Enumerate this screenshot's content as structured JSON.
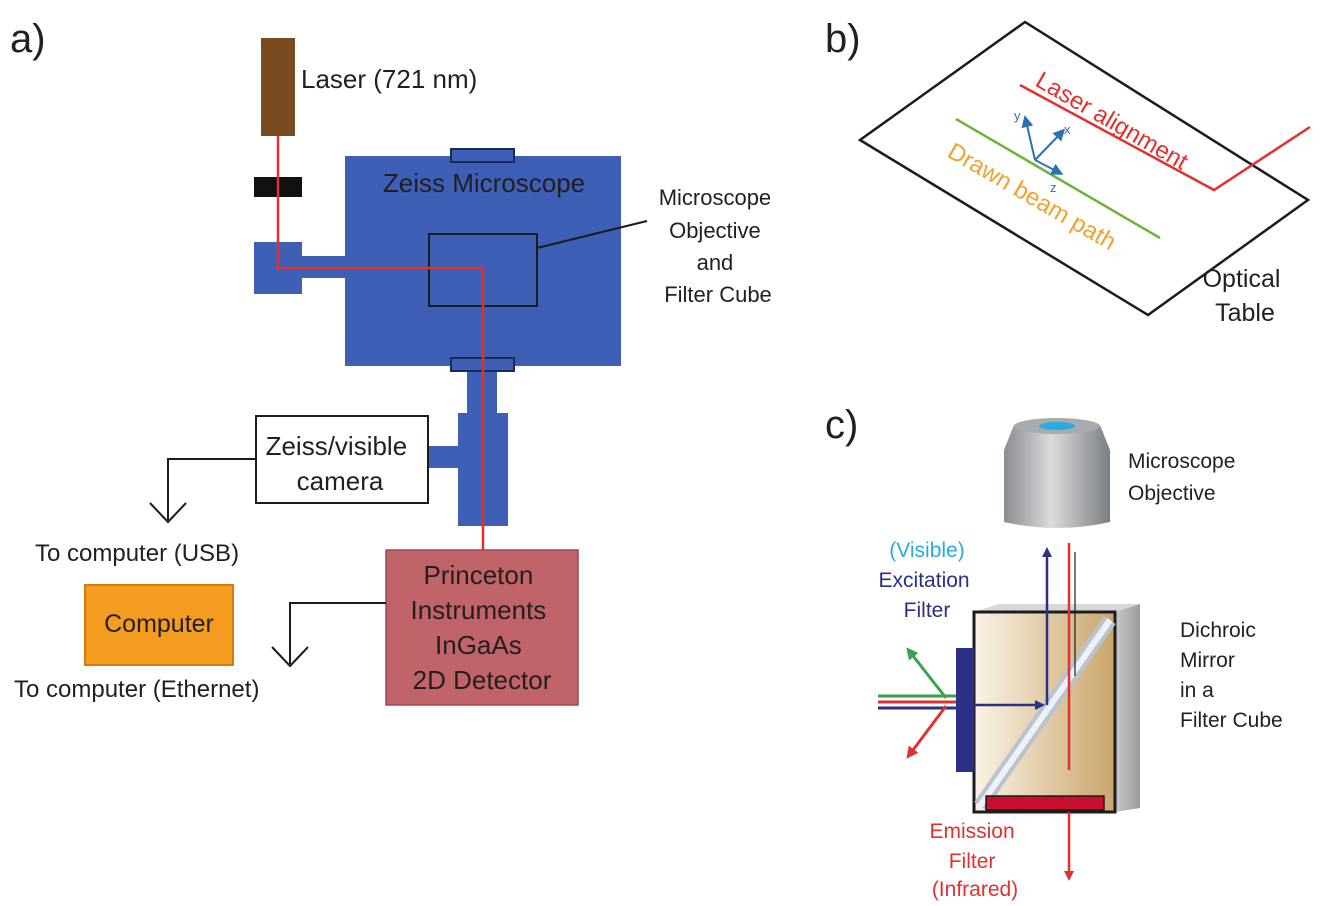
{
  "panel_a": {
    "label": "a)",
    "laser": "Laser (721 nm)",
    "microscope": "Zeiss Microscope",
    "objective_label": [
      "Microscope",
      "Objective",
      "and",
      "Filter Cube"
    ],
    "camera": [
      "Zeiss/visible",
      "camera"
    ],
    "to_computer_usb": "To computer (USB)",
    "computer": "Computer",
    "to_computer_ethernet": "To computer (Ethernet)",
    "detector": [
      "Princeton",
      "Instruments",
      "InGaAs",
      "2D Detector"
    ]
  },
  "panel_b": {
    "label": "b)",
    "laser_alignment": "Laser alignment",
    "drawn_beam_path": "Drawn beam path",
    "axes": {
      "x": "x",
      "y": "y",
      "z": "z"
    },
    "optical_table": [
      "Optical",
      "Table"
    ]
  },
  "panel_c": {
    "label": "c)",
    "objective": [
      "Microscope",
      "Objective"
    ],
    "visible": "(Visible)",
    "excitation_filter": [
      "Excitation",
      "Filter"
    ],
    "dichroic": [
      "Dichroic",
      "Mirror",
      "in a",
      "Filter Cube"
    ],
    "emission_filter": [
      "Emission",
      "Filter",
      "(Infrared)"
    ]
  },
  "colors": {
    "microscope_blue": "#3d5fb5",
    "laser_brown": "#7a4a21",
    "laser_red": "#e0312f",
    "detector": "#c0646a",
    "computer": "#f39c1f",
    "beam_green": "#6fb33b",
    "beam_orange": "#f0a230",
    "axis_blue": "#2f6fb5",
    "visible_cyan": "#29abe2",
    "excitation_navy": "#2b2f86"
  }
}
